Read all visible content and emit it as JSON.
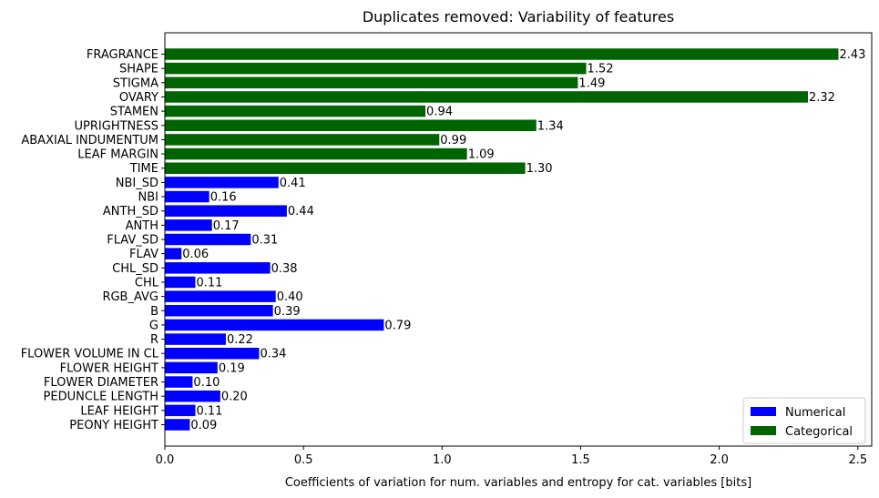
{
  "chart_data": {
    "type": "bar",
    "orientation": "horizontal",
    "title": "Duplicates removed: Variability of features",
    "xlabel": "Coefficients of variation for num. variables and entropy for cat. variables [bits]",
    "ylabel": "",
    "xlim": [
      0,
      2.55
    ],
    "xticks": [
      "0.0",
      "0.5",
      "1.0",
      "1.5",
      "2.0",
      "2.5"
    ],
    "grid": false,
    "legend_position": "lower right",
    "legend": [
      {
        "label": "Numerical",
        "color": "#0000ff"
      },
      {
        "label": "Categorical",
        "color": "#006400"
      }
    ],
    "categories": [
      "FRAGRANCE",
      "SHAPE",
      "STIGMA",
      "OVARY",
      "STAMEN",
      "UPRIGHTNESS",
      "ABAXIAL INDUMENTUM",
      "LEAF MARGIN",
      "TIME",
      "NBI_SD",
      "NBI",
      "ANTH_SD",
      "ANTH",
      "FLAV_SD",
      "FLAV",
      "CHL_SD",
      "CHL",
      "RGB_AVG",
      "B",
      "G",
      "R",
      "FLOWER VOLUME IN CL",
      "FLOWER HEIGHT",
      "FLOWER DIAMETER",
      "PEDUNCLE LENGTH",
      "LEAF HEIGHT",
      "PEONY HEIGHT"
    ],
    "values": [
      2.43,
      1.52,
      1.49,
      2.32,
      0.94,
      1.34,
      0.99,
      1.09,
      1.3,
      0.41,
      0.16,
      0.44,
      0.17,
      0.31,
      0.06,
      0.38,
      0.11,
      0.4,
      0.39,
      0.79,
      0.22,
      0.34,
      0.19,
      0.1,
      0.2,
      0.11,
      0.09
    ],
    "value_labels": [
      "2.43",
      "1.52",
      "1.49",
      "2.32",
      "0.94",
      "1.34",
      "0.99",
      "1.09",
      "1.30",
      "0.41",
      "0.16",
      "0.44",
      "0.17",
      "0.31",
      "0.06",
      "0.38",
      "0.11",
      "0.40",
      "0.39",
      "0.79",
      "0.22",
      "0.34",
      "0.19",
      "0.10",
      "0.20",
      "0.11",
      "0.09"
    ],
    "series_type": [
      "Categorical",
      "Categorical",
      "Categorical",
      "Categorical",
      "Categorical",
      "Categorical",
      "Categorical",
      "Categorical",
      "Categorical",
      "Numerical",
      "Numerical",
      "Numerical",
      "Numerical",
      "Numerical",
      "Numerical",
      "Numerical",
      "Numerical",
      "Numerical",
      "Numerical",
      "Numerical",
      "Numerical",
      "Numerical",
      "Numerical",
      "Numerical",
      "Numerical",
      "Numerical",
      "Numerical"
    ]
  }
}
